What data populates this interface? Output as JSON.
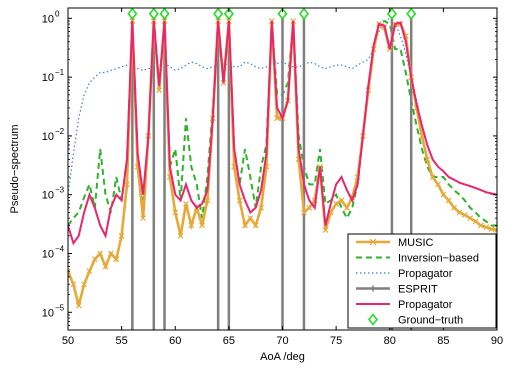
{
  "chart_data": {
    "type": "line",
    "xlabel": "AoA /deg",
    "ylabel": "Pseudo−spectrum",
    "xlim": [
      50,
      90
    ],
    "ylim": [
      5e-06,
      1.5
    ],
    "yscale": "log",
    "grid": false,
    "legend_position": "bottom-right",
    "xticks": [
      {
        "value": 50,
        "label": "50"
      },
      {
        "value": 55,
        "label": "55"
      },
      {
        "value": 60,
        "label": "60"
      },
      {
        "value": 65,
        "label": "65"
      },
      {
        "value": 70,
        "label": "70"
      },
      {
        "value": 75,
        "label": "75"
      },
      {
        "value": 80,
        "label": "80"
      },
      {
        "value": 85,
        "label": "85"
      },
      {
        "value": 90,
        "label": "90"
      }
    ],
    "yticks": [
      {
        "value": 1e-05,
        "label": "10",
        "exp": "−5"
      },
      {
        "value": 0.0001,
        "label": "10",
        "exp": "−4"
      },
      {
        "value": 0.001,
        "label": "10",
        "exp": "−3"
      },
      {
        "value": 0.01,
        "label": "10",
        "exp": "−2"
      },
      {
        "value": 0.1,
        "label": "10",
        "exp": "−1"
      },
      {
        "value": 1,
        "label": "10",
        "exp": "0"
      }
    ],
    "series": [
      {
        "name": "MUSIC",
        "color": "#e8a838",
        "style": "solid-x",
        "x": [
          50.0,
          50.5,
          51.0,
          51.5,
          52.0,
          52.5,
          53.0,
          53.5,
          54.0,
          54.5,
          55.0,
          55.5,
          56.0,
          56.5,
          57.0,
          57.5,
          58.0,
          58.5,
          59.0,
          59.5,
          60.0,
          60.5,
          61.0,
          61.5,
          62.0,
          62.5,
          63.0,
          63.5,
          64.0,
          64.5,
          65.0,
          65.5,
          66.0,
          66.5,
          67.0,
          67.5,
          68.0,
          68.5,
          69.0,
          69.5,
          70.0,
          70.5,
          71.0,
          71.5,
          72.0,
          72.5,
          73.0,
          73.5,
          74.0,
          74.5,
          75.0,
          75.5,
          76.0,
          76.5,
          77.0,
          77.5,
          78.0,
          78.5,
          79.0,
          79.5,
          80.0,
          80.5,
          81.0,
          81.5,
          82.0,
          82.5,
          83.0,
          83.5,
          84.0,
          84.5,
          85.0,
          85.5,
          86.0,
          86.5,
          87.0,
          87.5,
          88.0,
          88.5,
          89.0,
          89.5,
          90.0
        ],
        "y": [
          5e-05,
          3e-05,
          1.3e-05,
          3e-05,
          5e-05,
          8e-05,
          0.0001,
          6e-05,
          0.0001,
          8e-05,
          0.0002,
          0.0015,
          0.9,
          0.003,
          0.0004,
          0.01,
          0.9,
          0.06,
          0.9,
          0.002,
          0.0005,
          0.0002,
          0.0007,
          0.0003,
          0.0006,
          0.0003,
          0.0008,
          0.02,
          0.9,
          0.08,
          0.9,
          0.003,
          0.0008,
          0.0003,
          0.0004,
          0.0003,
          0.0006,
          0.003,
          0.9,
          0.02,
          0.02,
          0.04,
          0.9,
          0.004,
          0.0005,
          0.0006,
          0.0008,
          0.003,
          0.00025,
          0.0005,
          0.0007,
          0.0008,
          0.0006,
          0.0009,
          0.002,
          0.01,
          0.06,
          0.3,
          0.8,
          0.7,
          0.3,
          0.8,
          0.8,
          0.5,
          0.1,
          0.03,
          0.01,
          0.004,
          0.002,
          0.0015,
          0.001,
          0.0008,
          0.0006,
          0.0005,
          0.00045,
          0.0004,
          0.00035,
          0.0003,
          0.00028,
          0.00026,
          0.00025
        ]
      },
      {
        "name": "Inversion−based",
        "color": "#2cb42c",
        "style": "dashed",
        "x": [
          50.0,
          50.5,
          51.0,
          51.5,
          52.0,
          52.5,
          53.0,
          53.5,
          54.0,
          54.5,
          55.0,
          55.5,
          56.0,
          56.5,
          57.0,
          57.5,
          58.0,
          58.5,
          59.0,
          59.5,
          60.0,
          60.5,
          61.0,
          61.5,
          62.0,
          62.5,
          63.0,
          63.5,
          64.0,
          64.5,
          65.0,
          65.5,
          66.0,
          66.5,
          67.0,
          67.5,
          68.0,
          68.5,
          69.0,
          69.5,
          70.0,
          70.5,
          71.0,
          71.5,
          72.0,
          72.5,
          73.0,
          73.5,
          74.0,
          74.5,
          75.0,
          75.5,
          76.0,
          76.5,
          77.0,
          77.5,
          78.0,
          78.5,
          79.0,
          79.5,
          80.0,
          80.5,
          81.0,
          81.5,
          82.0,
          82.5,
          83.0,
          83.5,
          84.0,
          84.5,
          85.0,
          85.5,
          86.0,
          86.5,
          87.0,
          87.5,
          88.0,
          88.5,
          89.0,
          89.5,
          90.0
        ],
        "y": [
          0.0003,
          0.0004,
          0.0005,
          0.0009,
          0.0015,
          0.0006,
          0.006,
          0.001,
          0.0005,
          0.002,
          0.0008,
          0.004,
          0.9,
          0.004,
          0.0008,
          0.01,
          0.9,
          0.07,
          0.9,
          0.003,
          0.006,
          0.0008,
          0.02,
          0.003,
          0.0015,
          0.0004,
          0.002,
          0.03,
          0.9,
          0.1,
          0.9,
          0.006,
          0.0015,
          0.006,
          0.002,
          0.0006,
          0.003,
          0.007,
          0.9,
          0.05,
          0.05,
          0.08,
          0.9,
          0.01,
          0.003,
          0.0015,
          0.0015,
          0.006,
          0.0007,
          0.0008,
          0.001,
          0.0006,
          0.0004,
          0.0006,
          0.0015,
          0.01,
          0.07,
          0.35,
          0.8,
          0.9,
          0.8,
          0.3,
          0.3,
          0.12,
          0.04,
          0.015,
          0.006,
          0.003,
          0.002,
          0.002,
          0.002,
          0.0015,
          0.0012,
          0.001,
          0.0008,
          0.0006,
          0.0005,
          0.0004,
          0.00035,
          0.0003,
          0.0003
        ]
      },
      {
        "name": "Propagator",
        "color": "#3a7fd5",
        "style": "dotted",
        "x": [
          50.0,
          50.5,
          51.0,
          51.5,
          52.0,
          52.5,
          53.0,
          53.5,
          54.0,
          54.5,
          55.0,
          55.5,
          56.0,
          56.5,
          57.0,
          57.5,
          58.0,
          58.5,
          59.0,
          59.5,
          60.0,
          60.5,
          61.0,
          61.5,
          62.0,
          62.5,
          63.0,
          63.5,
          64.0,
          64.5,
          65.0,
          65.5,
          66.0,
          66.5,
          67.0,
          67.5,
          68.0,
          68.5,
          69.0,
          69.5,
          70.0,
          70.5,
          71.0,
          71.5,
          72.0,
          72.5,
          73.0,
          73.5,
          74.0,
          74.5,
          75.0,
          75.5,
          76.0,
          76.5,
          77.0,
          77.5,
          78.0,
          78.5,
          79.0,
          79.5,
          80.0,
          80.5,
          81.0,
          81.5,
          82.0,
          82.5,
          83.0,
          83.5,
          84.0,
          84.5,
          85.0,
          85.5,
          86.0,
          86.5,
          87.0,
          87.5,
          88.0,
          88.5,
          89.0,
          89.5,
          90.0
        ],
        "y": [
          0.001,
          0.005,
          0.02,
          0.05,
          0.08,
          0.1,
          0.12,
          0.12,
          0.13,
          0.14,
          0.15,
          0.16,
          0.15,
          0.14,
          0.13,
          0.14,
          0.15,
          0.16,
          0.17,
          0.15,
          0.13,
          0.14,
          0.16,
          0.18,
          0.17,
          0.15,
          0.14,
          0.15,
          0.16,
          0.17,
          0.16,
          0.15,
          0.15,
          0.18,
          0.17,
          0.15,
          0.14,
          0.15,
          0.16,
          0.17,
          0.18,
          0.16,
          0.15,
          0.15,
          0.16,
          0.18,
          0.17,
          0.15,
          0.14,
          0.15,
          0.16,
          0.16,
          0.15,
          0.14,
          0.16,
          0.18,
          0.2,
          0.3,
          0.6,
          0.9,
          1.0,
          0.8,
          0.5,
          0.25,
          0.1,
          0.04,
          0.015,
          0.007,
          0.004,
          0.003,
          0.0025,
          0.002,
          0.0018,
          0.0016,
          0.0015,
          0.0014,
          0.0013,
          0.0012,
          0.0011,
          0.001,
          0.001
        ]
      },
      {
        "name": "ESPRIT",
        "color": "#7f7f7f",
        "style": "stems",
        "x": [
          56,
          58,
          59,
          64,
          65,
          70,
          72,
          80.2,
          82
        ],
        "y": [
          1,
          1,
          1,
          1,
          1,
          1,
          1,
          1,
          1
        ]
      },
      {
        "name": "Propagator",
        "color": "#e8256e",
        "style": "solid",
        "x": [
          50.0,
          50.5,
          51.0,
          51.5,
          52.0,
          52.5,
          53.0,
          53.5,
          54.0,
          54.5,
          55.0,
          55.5,
          56.0,
          56.5,
          57.0,
          57.5,
          58.0,
          58.5,
          59.0,
          59.5,
          60.0,
          60.5,
          61.0,
          61.5,
          62.0,
          62.5,
          63.0,
          63.5,
          64.0,
          64.5,
          65.0,
          65.5,
          66.0,
          66.5,
          67.0,
          67.5,
          68.0,
          68.5,
          69.0,
          69.5,
          70.0,
          70.5,
          71.0,
          71.5,
          72.0,
          72.5,
          73.0,
          73.5,
          74.0,
          74.5,
          75.0,
          75.5,
          76.0,
          76.5,
          77.0,
          77.5,
          78.0,
          78.5,
          79.0,
          79.5,
          80.0,
          80.5,
          81.0,
          81.5,
          82.0,
          82.5,
          83.0,
          83.5,
          84.0,
          84.5,
          85.0,
          85.5,
          86.0,
          86.5,
          87.0,
          87.5,
          88.0,
          88.5,
          89.0,
          89.5,
          90.0
        ],
        "y": [
          0.0003,
          0.00015,
          0.0002,
          0.0005,
          0.001,
          0.0006,
          0.0003,
          0.0002,
          0.0006,
          0.001,
          0.0008,
          0.004,
          0.9,
          0.005,
          0.001,
          0.01,
          0.9,
          0.07,
          0.9,
          0.003,
          0.001,
          0.0008,
          0.0015,
          0.0008,
          0.0006,
          0.0007,
          0.0012,
          0.02,
          0.9,
          0.08,
          0.9,
          0.006,
          0.0015,
          0.0008,
          0.0005,
          0.0006,
          0.0012,
          0.005,
          0.9,
          0.03,
          0.02,
          0.04,
          0.9,
          0.006,
          0.0015,
          0.0008,
          0.0006,
          0.003,
          0.0003,
          0.0007,
          0.0015,
          0.002,
          0.0012,
          0.0008,
          0.0015,
          0.01,
          0.07,
          0.35,
          0.8,
          0.75,
          0.3,
          0.8,
          0.85,
          0.4,
          0.1,
          0.035,
          0.015,
          0.007,
          0.004,
          0.003,
          0.0025,
          0.002,
          0.0018,
          0.0016,
          0.0015,
          0.0014,
          0.0013,
          0.0012,
          0.0011,
          0.00105,
          0.001
        ]
      },
      {
        "name": "Ground−truth",
        "color": "#22dd22",
        "style": "diamond",
        "x": [
          56,
          58,
          59,
          64,
          65,
          70,
          72,
          80.2,
          82
        ],
        "y": [
          1.2,
          1.2,
          1.2,
          1.2,
          1.2,
          1.2,
          1.2,
          1.2,
          1.2
        ]
      }
    ]
  }
}
